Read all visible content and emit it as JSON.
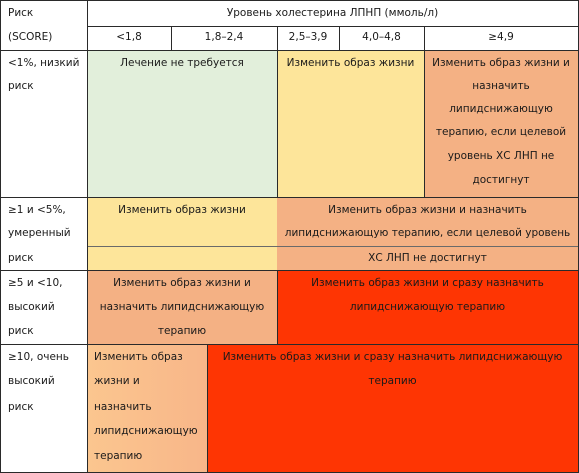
{
  "header": {
    "risk_line1": "Риск",
    "risk_line2": "(SCORE)",
    "ldl_title": "Уровень холестерина ЛПНП (ммоль/л)",
    "col1": "<1,8",
    "col2": "1,8–2,4",
    "col3": "2,5–3,9",
    "col4": "4,0–4,8",
    "col5": "≥4,9"
  },
  "rows": {
    "low": {
      "risk": [
        "<1%, низкий",
        "риск"
      ],
      "no_treatment": "Лечение не требуется",
      "lifestyle": "Изменить образ жизни",
      "lifestyle_drugs": [
        "Изменить образ жизни и",
        "назначить",
        "липидснижающую",
        "терапию, если целевой",
        "уровень ХС ЛНП не",
        "достигнут"
      ]
    },
    "moderate": {
      "risk": [
        "≥1 и <5%,",
        "умеренный",
        "риск"
      ],
      "lifestyle": "Изменить образ жизни",
      "lifestyle_drugs": [
        "Изменить образ жизни и назначить",
        "липидснижающую терапию, если целевой уровень",
        "ХС ЛНП не достигнут"
      ]
    },
    "high": {
      "risk": [
        "≥5 и <10,",
        "высокий",
        "риск"
      ],
      "lifestyle_drugs": [
        "Изменить образ жизни и",
        "назначить липидснижающую",
        "терапию"
      ],
      "lifestyle_now": [
        "Изменить образ жизни и сразу назначить",
        "липидснижающую терапию"
      ]
    },
    "very_high": {
      "risk": [
        "≥10, очень",
        "высокий",
        "риск"
      ],
      "lifestyle_drugs": [
        "Изменить образ",
        "жизни и",
        "назначить",
        "липидснижающую",
        "терапию"
      ],
      "lifestyle_now": [
        "Изменить образ жизни и сразу назначить липидснижающую",
        "терапию"
      ]
    }
  },
  "colors": {
    "green": "#e2efdb",
    "yellow": "#fde59a",
    "orange": "#f4b184",
    "red": "#fe3503"
  }
}
